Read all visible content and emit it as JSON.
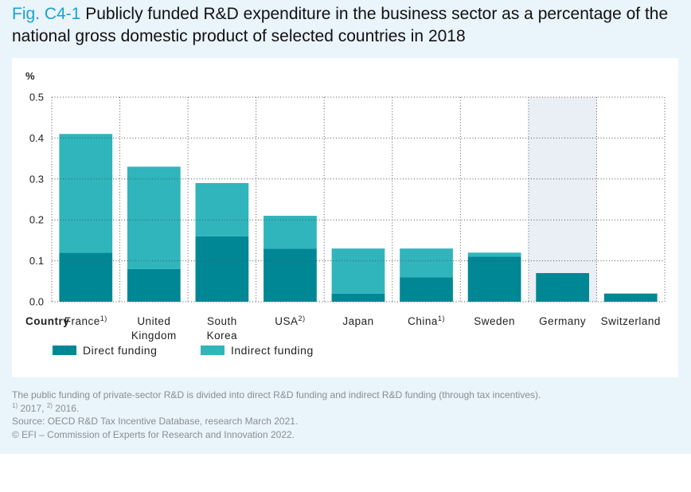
{
  "figure": {
    "label": "Fig. C4-1",
    "title": "Publicly funded R&D expenditure in the business sector as a percentage of the national gross domestic product of selected countries in 2018"
  },
  "notes": {
    "line1": "The public funding of private-sector R&D is divided into direct R&D funding and indirect R&D funding (through tax incentives).",
    "footnote1_mark": "1)",
    "footnote1_text": " 2017, ",
    "footnote2_mark": "2)",
    "footnote2_text": " 2016.",
    "source": "Source: OECD R&D Tax Incentive Database, research March 2021.",
    "copyright": "© EFI – Commission of Experts for Research and Innovation 2022."
  },
  "colors": {
    "direct": "#008796",
    "indirect": "#2fb5bb",
    "highlight": "#e9eff4",
    "grid": "#555555"
  },
  "chart_data": {
    "type": "bar",
    "stacked": true,
    "title": "Publicly funded R&D expenditure in the business sector as a percentage of the national gross domestic product of selected countries in 2018",
    "xlabel": "Country",
    "ylabel": "%",
    "ylim": [
      0,
      0.5
    ],
    "yticks": [
      "0.0",
      "0.1",
      "0.2",
      "0.3",
      "0.4",
      "0.5"
    ],
    "grid": true,
    "legend_position": "bottom-left",
    "highlight_category": "Germany",
    "categories": [
      {
        "lines": [
          "France"
        ],
        "sup": "1)"
      },
      {
        "lines": [
          "United",
          "Kingdom"
        ],
        "sup": ""
      },
      {
        "lines": [
          "South",
          "Korea"
        ],
        "sup": ""
      },
      {
        "lines": [
          "USA"
        ],
        "sup": "2)"
      },
      {
        "lines": [
          "Japan"
        ],
        "sup": ""
      },
      {
        "lines": [
          "China"
        ],
        "sup": "1)"
      },
      {
        "lines": [
          "Sweden"
        ],
        "sup": ""
      },
      {
        "lines": [
          "Germany"
        ],
        "sup": ""
      },
      {
        "lines": [
          "Switzerland"
        ],
        "sup": ""
      }
    ],
    "series": [
      {
        "name": "Direct funding",
        "key": "direct",
        "values": [
          0.12,
          0.08,
          0.16,
          0.13,
          0.02,
          0.06,
          0.11,
          0.07,
          0.02
        ]
      },
      {
        "name": "Indirect funding",
        "key": "indirect",
        "values": [
          0.29,
          0.25,
          0.13,
          0.08,
          0.11,
          0.07,
          0.01,
          0.0,
          0.0
        ]
      }
    ]
  }
}
